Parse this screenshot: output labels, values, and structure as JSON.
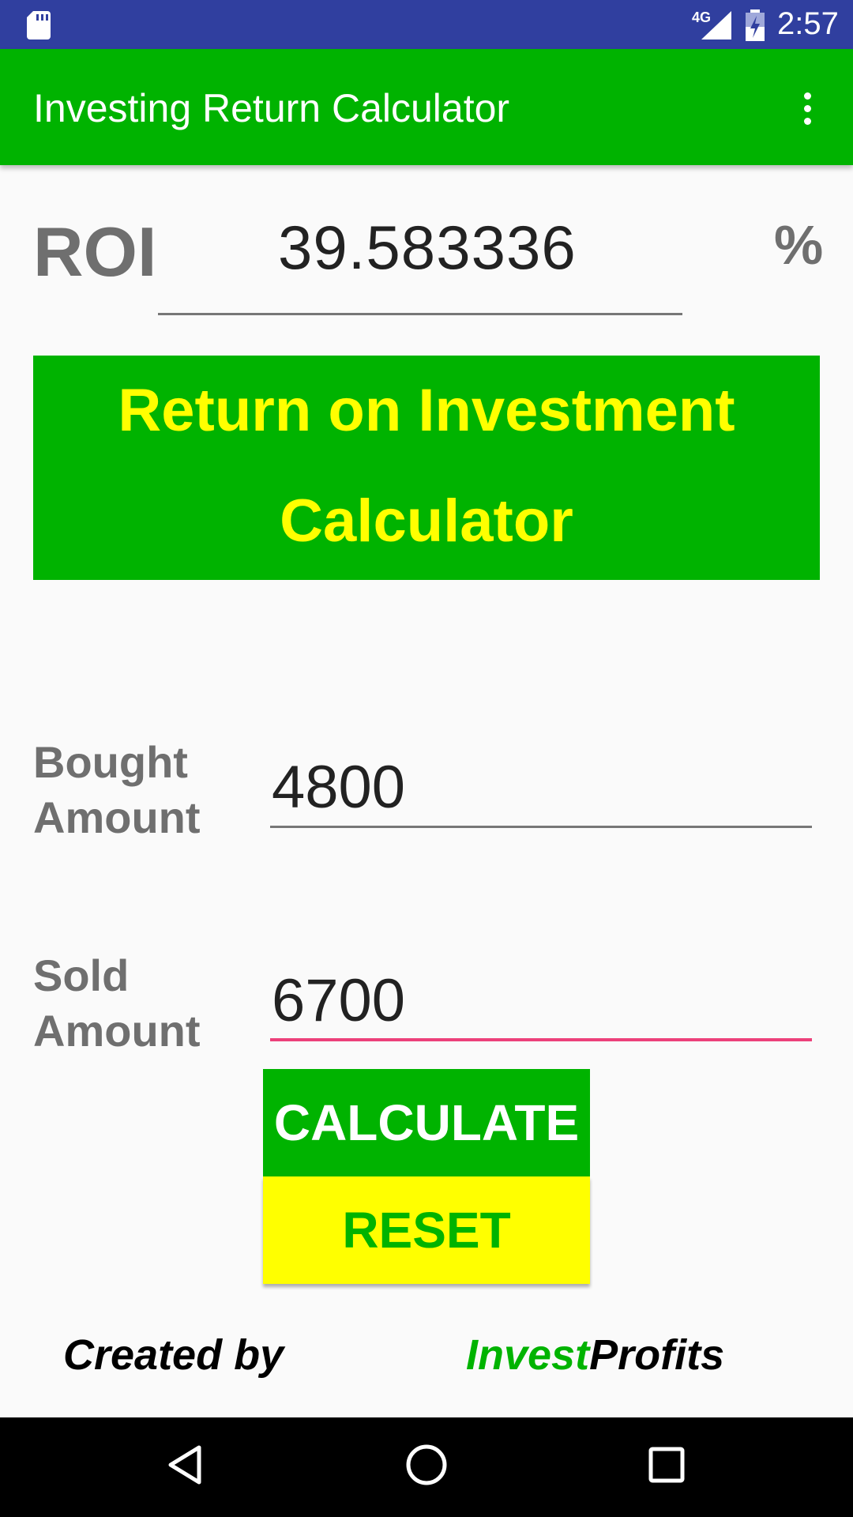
{
  "status_bar": {
    "time": "2:57",
    "network": "4G",
    "icons": [
      "sd-card-icon",
      "signal-icon",
      "battery-charging-icon"
    ]
  },
  "app_bar": {
    "title": "Investing Return Calculator",
    "menu_icon": "more-vert-icon"
  },
  "result": {
    "label": "ROI",
    "value": "39.583336",
    "unit": "%"
  },
  "banner": {
    "line1": "Return on Investment",
    "line2": "Calculator"
  },
  "form": {
    "bought_label_line1": "Bought",
    "bought_label_line2": "Amount",
    "bought_value": "4800",
    "sold_label_line1": "Sold",
    "sold_label_line2": "Amount",
    "sold_value": "6700"
  },
  "buttons": {
    "calculate": "CALCULATE",
    "reset": "RESET"
  },
  "footer": {
    "created_by": "Created by",
    "brand_part1": "Invest",
    "brand_part2": "Profits"
  },
  "colors": {
    "status_bar": "#303f9f",
    "primary_green": "#00b300",
    "yellow": "#ffff00",
    "label_gray": "#6f6f6f",
    "focus_underline": "#ec407a"
  },
  "nav_bar": {
    "icons": [
      "back-icon",
      "home-icon",
      "recents-icon"
    ]
  }
}
